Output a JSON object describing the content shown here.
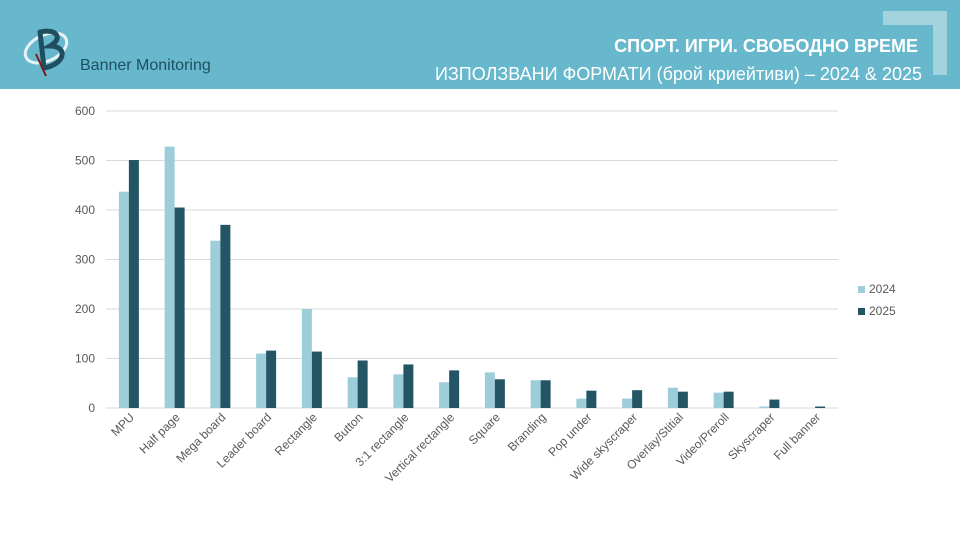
{
  "header": {
    "brand": "Banner Monitoring",
    "title": "СПОРТ. ИГРИ. СВОБОДНО ВРЕМЕ",
    "subtitle": "ИЗПОЛЗВАНИ ФОРМАТИ (брой криейтиви) – 2024 & 2025",
    "colors": {
      "band": "#67b8cc",
      "corner": "#a3d3df",
      "text": "#ffffff"
    }
  },
  "chart_data": {
    "type": "bar",
    "title": "ИЗПОЛЗВАНИ ФОРМАТИ (брой криейтиви) – 2024 & 2025",
    "xlabel": "",
    "ylabel": "",
    "ylim": [
      0,
      600
    ],
    "yticks": [
      0,
      100,
      200,
      300,
      400,
      500,
      600
    ],
    "grid": true,
    "legend_position": "right",
    "categories": [
      "MPU",
      "Half page",
      "Mega board",
      "Leader board",
      "Rectangle",
      "Button",
      "3:1 rectangle",
      "Vertical rectangle",
      "Square",
      "Branding",
      "Pop under",
      "Wide skyscraper",
      "Overlay/Stitial",
      "Video/Preroll",
      "Skyscraper",
      "Full banner"
    ],
    "series": [
      {
        "name": "2024",
        "color": "#9ccdd8",
        "values": [
          437,
          528,
          338,
          110,
          200,
          62,
          68,
          52,
          72,
          56,
          19,
          19,
          41,
          31,
          3,
          0
        ]
      },
      {
        "name": "2025",
        "color": "#245564",
        "values": [
          501,
          405,
          370,
          116,
          114,
          96,
          88,
          76,
          58,
          56,
          35,
          36,
          33,
          33,
          17,
          3
        ]
      }
    ]
  }
}
